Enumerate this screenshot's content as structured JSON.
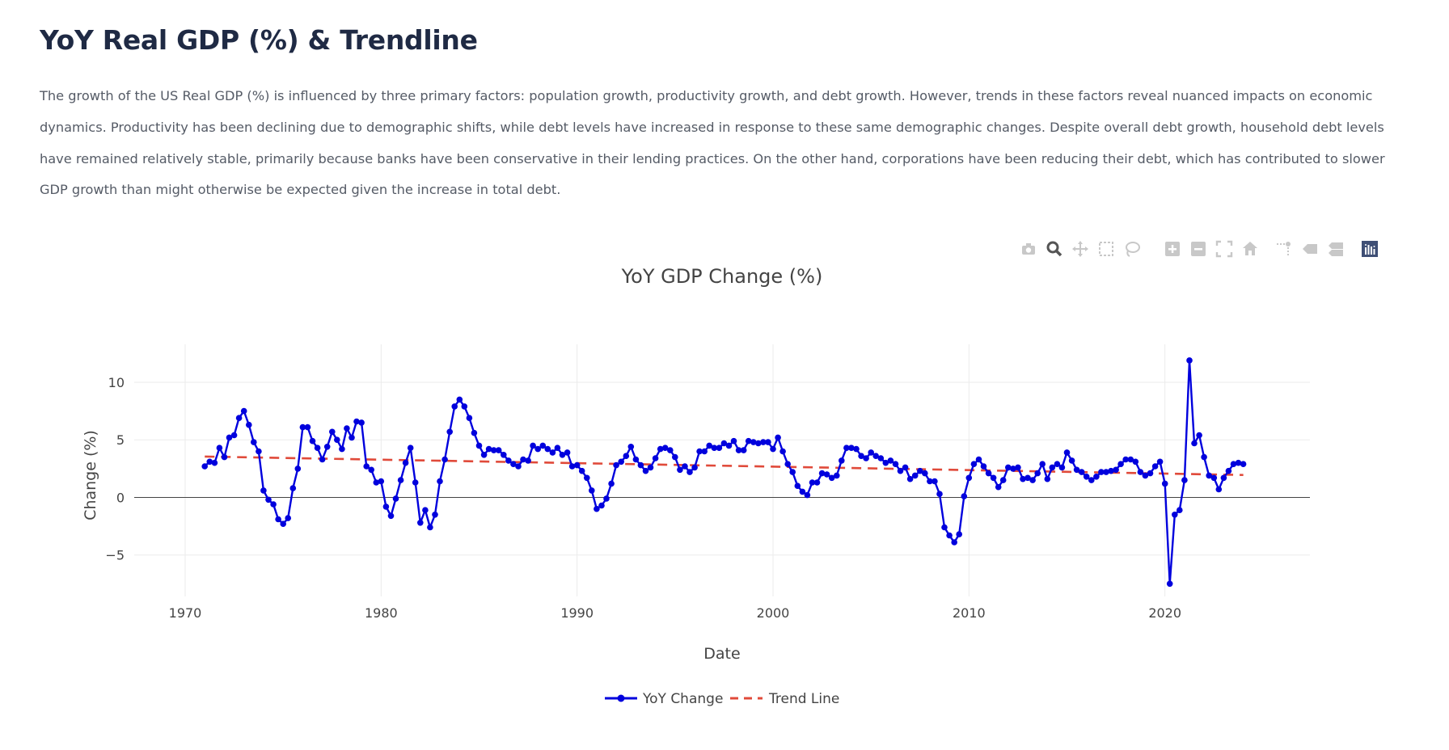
{
  "page": {
    "title": "YoY Real GDP (%) & Trendline",
    "description": "The growth of the US Real GDP (%) is influenced by three primary factors: population growth, productivity growth, and debt growth. However, trends in these factors reveal nuanced impacts on economic dynamics. Productivity has been declining due to demographic shifts, while debt levels have increased in response to these same demographic changes. Despite overall debt growth, household debt levels have remained relatively stable, primarily because banks have been conservative in their lending practices. On the other hand, corporations have been reducing their debt, which has contributed to slower GDP growth than might otherwise be expected given the increase in total debt."
  },
  "modebar": {
    "icons": [
      "camera-icon",
      "zoom-icon",
      "pan-icon",
      "box-select-icon",
      "lasso-select-icon",
      "zoom-in-icon",
      "zoom-out-icon",
      "autoscale-icon",
      "reset-axes-icon",
      "spike-lines-icon",
      "hover-closest-icon",
      "hover-compare-icon",
      "plotly-logo-icon"
    ],
    "active": "zoom-icon",
    "icon_color": "#c8c8c8",
    "active_color": "#555555",
    "logo_color": "#3f4f75"
  },
  "chart_data": {
    "type": "line",
    "title": "YoY GDP Change (%)",
    "xlabel": "Date",
    "ylabel": "Change (%)",
    "xlim": [
      1967.4,
      2027.4
    ],
    "ylim": [
      -8.6,
      13.3
    ],
    "x_ticks": [
      1970,
      1980,
      1990,
      2000,
      2010,
      2020
    ],
    "y_ticks": [
      -5,
      0,
      5,
      10
    ],
    "x_tick_labels": [
      "1970",
      "1980",
      "1990",
      "2000",
      "2010",
      "2020"
    ],
    "y_tick_labels": [
      "−5",
      "0",
      "5",
      "10"
    ],
    "grid": true,
    "zero_line": true,
    "legend_position": "bottom-center",
    "series": [
      {
        "name": "YoY Change",
        "style": "lines+markers",
        "color": "#0000dd",
        "x_start": 1971.0,
        "x_step": 0.25,
        "values": [
          2.7,
          3.1,
          3.0,
          4.3,
          3.5,
          5.2,
          5.4,
          6.9,
          7.5,
          6.3,
          4.8,
          4.0,
          0.6,
          -0.2,
          -0.6,
          -1.9,
          -2.3,
          -1.8,
          0.8,
          2.5,
          6.1,
          6.1,
          4.9,
          4.3,
          3.3,
          4.4,
          5.7,
          5.0,
          4.2,
          6.0,
          5.2,
          6.6,
          6.5,
          2.7,
          2.4,
          1.3,
          1.4,
          -0.8,
          -1.6,
          -0.1,
          1.5,
          3.0,
          4.3,
          1.3,
          -2.2,
          -1.1,
          -2.6,
          -1.5,
          1.4,
          3.3,
          5.7,
          7.9,
          8.5,
          7.9,
          6.9,
          5.6,
          4.5,
          3.7,
          4.2,
          4.1,
          4.1,
          3.7,
          3.2,
          2.9,
          2.7,
          3.3,
          3.2,
          4.5,
          4.2,
          4.5,
          4.2,
          3.9,
          4.3,
          3.7,
          3.9,
          2.7,
          2.8,
          2.3,
          1.7,
          0.6,
          -1.0,
          -0.7,
          -0.1,
          1.2,
          2.8,
          3.1,
          3.6,
          4.4,
          3.3,
          2.8,
          2.3,
          2.6,
          3.4,
          4.2,
          4.3,
          4.1,
          3.5,
          2.4,
          2.7,
          2.2,
          2.6,
          4.0,
          4.0,
          4.5,
          4.3,
          4.3,
          4.7,
          4.5,
          4.9,
          4.1,
          4.1,
          4.9,
          4.8,
          4.7,
          4.8,
          4.8,
          4.2,
          5.2,
          4.0,
          2.9,
          2.2,
          1.0,
          0.5,
          0.2,
          1.3,
          1.3,
          2.1,
          2.0,
          1.7,
          1.9,
          3.2,
          4.3,
          4.3,
          4.2,
          3.6,
          3.4,
          3.9,
          3.6,
          3.4,
          3.0,
          3.2,
          2.9,
          2.3,
          2.6,
          1.6,
          1.9,
          2.3,
          2.1,
          1.4,
          1.4,
          0.3,
          -2.6,
          -3.3,
          -3.9,
          -3.2,
          0.1,
          1.7,
          2.9,
          3.3,
          2.7,
          2.1,
          1.7,
          0.9,
          1.5,
          2.6,
          2.5,
          2.6,
          1.6,
          1.7,
          1.5,
          2.1,
          2.9,
          1.6,
          2.6,
          2.9,
          2.6,
          3.9,
          3.2,
          2.4,
          2.2,
          1.8,
          1.5,
          1.8,
          2.2,
          2.2,
          2.3,
          2.4,
          2.9,
          3.3,
          3.3,
          3.1,
          2.2,
          1.9,
          2.1,
          2.7,
          3.1,
          1.2,
          -7.5,
          -1.5,
          -1.1,
          1.5,
          11.9,
          4.7,
          5.4,
          3.5,
          1.9,
          1.7,
          0.7,
          1.7,
          2.3,
          2.9,
          3.0,
          2.9
        ]
      },
      {
        "name": "Trend Line",
        "style": "dashed-line",
        "color": "#e04a3a",
        "x": [
          1971.0,
          2024.0
        ],
        "values": [
          3.55,
          1.95
        ]
      }
    ]
  }
}
